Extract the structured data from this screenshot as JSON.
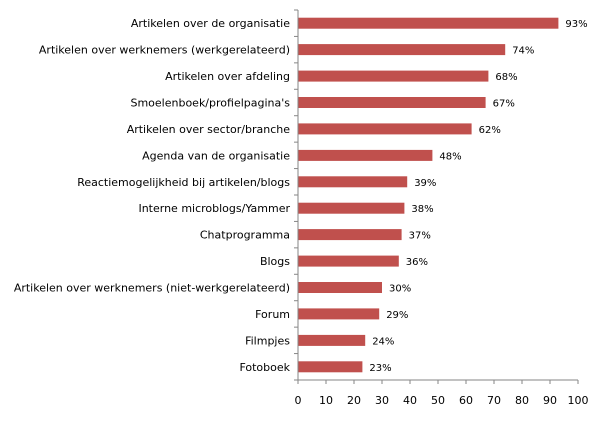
{
  "chart_data": {
    "type": "bar",
    "orientation": "horizontal",
    "categories": [
      "Artikelen over de organisatie",
      "Artikelen over werknemers (werkgerelateerd)",
      "Artikelen over afdeling",
      "Smoelenboek/profielpagina's",
      "Artikelen over sector/branche",
      "Agenda van de organisatie",
      "Reactiemogelijkheid bij artikelen/blogs",
      "Interne microblogs/Yammer",
      "Chatprogramma",
      "Blogs",
      "Artikelen over werknemers (niet-werkgerelateerd)",
      "Forum",
      "Filmpjes",
      "Fotoboek"
    ],
    "values": [
      93,
      74,
      68,
      67,
      62,
      48,
      39,
      38,
      37,
      36,
      30,
      29,
      24,
      23
    ],
    "data_labels": [
      "93%",
      "74%",
      "68%",
      "67%",
      "62%",
      "48%",
      "39%",
      "38%",
      "37%",
      "36%",
      "30%",
      "29%",
      "24%",
      "23%"
    ],
    "xlim": [
      0,
      100
    ],
    "xticks": [
      "0",
      "10",
      "20",
      "30",
      "40",
      "50",
      "60",
      "70",
      "80",
      "90",
      "100"
    ],
    "grid": false,
    "legend": "none",
    "bar_color": "#c0504d",
    "axis_color": "#868686"
  }
}
